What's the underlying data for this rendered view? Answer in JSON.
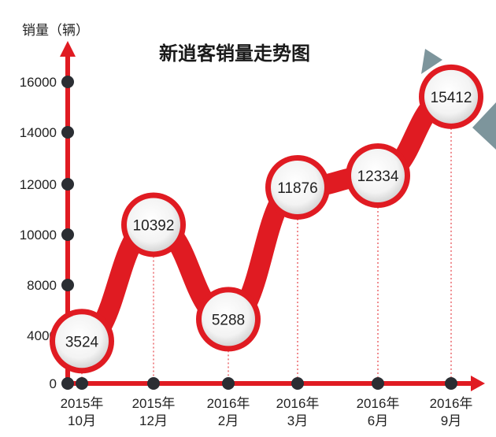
{
  "chart_data": {
    "type": "line",
    "title": "新逍客销量走势图",
    "ylabel": "销量（辆）",
    "xlabel": "",
    "ylim": [
      0,
      16000
    ],
    "yticks": [
      "0",
      "4000",
      "8000",
      "10000",
      "12000",
      "14000",
      "16000"
    ],
    "categories": [
      [
        "2015年",
        "10月"
      ],
      [
        "2015年",
        "12月"
      ],
      [
        "2016年",
        "2月"
      ],
      [
        "2016年",
        "3月"
      ],
      [
        "2016年",
        "6月"
      ],
      [
        "2016年",
        "9月"
      ]
    ],
    "values": [
      3524,
      10392,
      5288,
      11876,
      12334,
      15412
    ],
    "value_labels": [
      "3524",
      "10392",
      "5288",
      "11876",
      "12334",
      "15412"
    ],
    "colors": {
      "line": "#e01b22",
      "axis": "#e01b22",
      "tick_dot": "#2b2e33",
      "accent": "#7d959c"
    }
  }
}
